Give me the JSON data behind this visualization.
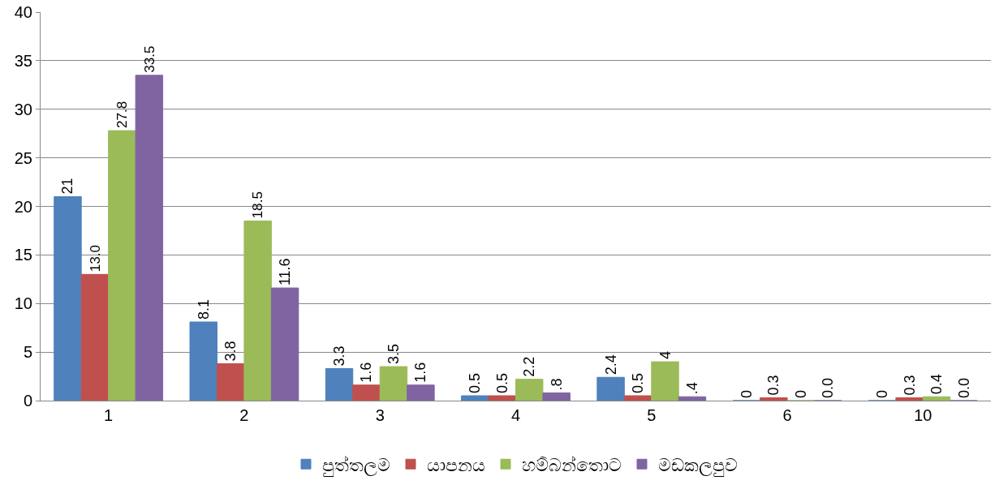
{
  "chart_data": {
    "type": "bar",
    "categories": [
      "1",
      "2",
      "3",
      "4",
      "5",
      "6",
      "10"
    ],
    "series": [
      {
        "name": "පුත්තලම",
        "color": "#4f81bd",
        "values": [
          21,
          8.1,
          3.3,
          0.5,
          2.4,
          0,
          0
        ],
        "value_labels": [
          "21",
          "8.1",
          "3.3",
          "0.5",
          "2.4",
          "0",
          "0"
        ]
      },
      {
        "name": "යාපනය",
        "color": "#c0504d",
        "values": [
          13.0,
          3.8,
          1.6,
          0.5,
          0.5,
          0.3,
          0.3
        ],
        "value_labels": [
          "13.0",
          "3.8",
          "1.6",
          "0.5",
          "0.5",
          "0.3",
          "0.3"
        ]
      },
      {
        "name": "හම්බන්තොට",
        "color": "#9bbb59",
        "values": [
          27.8,
          18.5,
          3.5,
          2.2,
          4,
          0,
          0.4
        ],
        "value_labels": [
          "27.8",
          "18.5",
          "3.5",
          "2.2",
          "4",
          "0",
          "0.4"
        ]
      },
      {
        "name": "මඩකලපුව",
        "color": "#8064a2",
        "values": [
          33.5,
          11.6,
          1.6,
          0.8,
          0.4,
          0.0,
          0.0
        ],
        "value_labels": [
          "33.5",
          "11.6",
          "1.6",
          ".8",
          ".4",
          "0.0",
          "0.0"
        ]
      }
    ],
    "ylim": [
      0,
      40
    ],
    "yticks": [
      0,
      5,
      10,
      15,
      20,
      25,
      30,
      35,
      40
    ],
    "grid": "y",
    "legend": "bottom"
  }
}
